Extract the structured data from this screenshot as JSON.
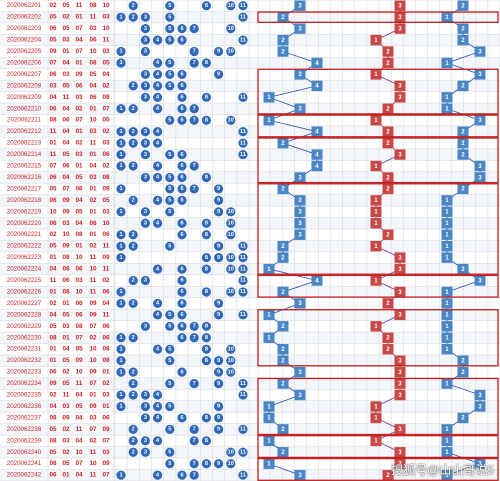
{
  "watermark": "搜狐号@山山哥说5",
  "colors": {
    "period_red": "#cc2222",
    "draw_red": "#cc2222",
    "ball_blue": "#2f68b6",
    "box_blue": "#4a86c4",
    "box_red": "#c84848",
    "frame_red": "#c41f1f",
    "omit_gray": "#b8b8b8",
    "grid": "#d6d6d6",
    "alt_row": "#f3f6fb",
    "purple_line": "#6b2d9e",
    "blue_line": "#2b4cb0"
  },
  "chart_data": {
    "type": "table",
    "rows": [
      {
        "period": "2020062201",
        "draw": [
          "02",
          "05",
          "11",
          "08",
          "10"
        ]
      },
      {
        "period": "2020062202",
        "draw": [
          "05",
          "02",
          "01",
          "11",
          "03"
        ]
      },
      {
        "period": "2020062203",
        "draw": [
          "06",
          "05",
          "07",
          "03",
          "10"
        ]
      },
      {
        "period": "2020062204",
        "draw": [
          "05",
          "03",
          "04",
          "06",
          "11"
        ]
      },
      {
        "period": "2020062205",
        "draw": [
          "09",
          "01",
          "07",
          "10",
          "03"
        ]
      },
      {
        "period": "2020062206",
        "draw": [
          "07",
          "04",
          "01",
          "08",
          "05"
        ]
      },
      {
        "period": "2020062207",
        "draw": [
          "06",
          "03",
          "09",
          "05",
          "04"
        ]
      },
      {
        "period": "2020062208",
        "draw": [
          "03",
          "05",
          "06",
          "04",
          "02"
        ]
      },
      {
        "period": "2020062209",
        "draw": [
          "04",
          "11",
          "03",
          "06",
          "08"
        ]
      },
      {
        "period": "2020062210",
        "draw": [
          "06",
          "04",
          "02",
          "01",
          "07"
        ]
      },
      {
        "period": "2020062211",
        "draw": [
          "08",
          "06",
          "07",
          "10",
          "05"
        ]
      },
      {
        "period": "2020062212",
        "draw": [
          "11",
          "04",
          "01",
          "03",
          "02"
        ]
      },
      {
        "period": "2020062213",
        "draw": [
          "01",
          "04",
          "02",
          "11",
          "03"
        ]
      },
      {
        "period": "2020062214",
        "draw": [
          "11",
          "05",
          "03",
          "01",
          "06"
        ]
      },
      {
        "period": "2020062215",
        "draw": [
          "07",
          "06",
          "01",
          "04",
          "02"
        ]
      },
      {
        "period": "2020062216",
        "draw": [
          "06",
          "04",
          "05",
          "03",
          "08"
        ]
      },
      {
        "period": "2020062217",
        "draw": [
          "05",
          "07",
          "06",
          "01",
          "09"
        ]
      },
      {
        "period": "2020062218",
        "draw": [
          "06",
          "09",
          "04",
          "02",
          "05"
        ]
      },
      {
        "period": "2020062219",
        "draw": [
          "10",
          "09",
          "05",
          "01",
          "03"
        ]
      },
      {
        "period": "2020062220",
        "draw": [
          "06",
          "03",
          "04",
          "08",
          "10"
        ]
      },
      {
        "period": "2020062221",
        "draw": [
          "02",
          "10",
          "08",
          "01",
          "06"
        ]
      },
      {
        "period": "2020062222",
        "draw": [
          "05",
          "09",
          "01",
          "02",
          "11"
        ]
      },
      {
        "period": "2020062223",
        "draw": [
          "01",
          "08",
          "10",
          "11",
          "09"
        ]
      },
      {
        "period": "2020062224",
        "draw": [
          "04",
          "08",
          "06",
          "10",
          "11"
        ]
      },
      {
        "period": "2020062225",
        "draw": [
          "11",
          "06",
          "03",
          "11",
          "02"
        ]
      },
      {
        "period": "2020062226",
        "draw": [
          "01",
          "08",
          "10",
          "11",
          "06"
        ]
      },
      {
        "period": "2020062227",
        "draw": [
          "02",
          "01",
          "06",
          "09",
          "04"
        ]
      },
      {
        "period": "2020062228",
        "draw": [
          "04",
          "05",
          "06",
          "09",
          "11"
        ]
      },
      {
        "period": "2020062229",
        "draw": [
          "05",
          "03",
          "08",
          "07",
          "06"
        ]
      },
      {
        "period": "2020062230",
        "draw": [
          "08",
          "01",
          "07",
          "02",
          "06"
        ]
      },
      {
        "period": "2020062231",
        "draw": [
          "01",
          "04",
          "05",
          "10",
          "08"
        ]
      },
      {
        "period": "2020062232",
        "draw": [
          "01",
          "05",
          "09",
          "10",
          "08"
        ]
      },
      {
        "period": "2020062233",
        "draw": [
          "06",
          "02",
          "10",
          "09",
          "01"
        ]
      },
      {
        "period": "2020062234",
        "draw": [
          "09",
          "05",
          "11",
          "07",
          "02"
        ]
      },
      {
        "period": "2020062235",
        "draw": [
          "02",
          "11",
          "04",
          "01",
          "03"
        ]
      },
      {
        "period": "2020062236",
        "draw": [
          "04",
          "03",
          "05",
          "09",
          "01"
        ]
      },
      {
        "period": "2020062237",
        "draw": [
          "08",
          "09",
          "04",
          "03",
          "06"
        ]
      },
      {
        "period": "2020062238",
        "draw": [
          "05",
          "02",
          "11",
          "07",
          "09"
        ]
      },
      {
        "period": "2020062239",
        "draw": [
          "08",
          "03",
          "04",
          "02",
          "07"
        ]
      },
      {
        "period": "2020062240",
        "draw": [
          "05",
          "02",
          "10",
          "11",
          "03"
        ]
      },
      {
        "period": "2020062241",
        "draw": [
          "08",
          "05",
          "07",
          "10",
          "09"
        ]
      },
      {
        "period": "2020062242",
        "draw": [
          "06",
          "01",
          "04",
          "11",
          "07"
        ]
      }
    ]
  }
}
